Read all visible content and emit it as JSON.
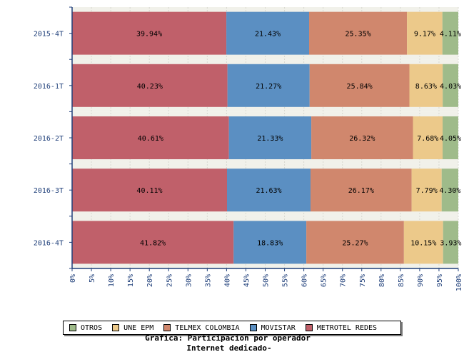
{
  "chart_data": {
    "type": "bar",
    "orientation": "horizontal",
    "stacked": true,
    "categories": [
      "2015-4T",
      "2016-1T",
      "2016-2T",
      "2016-3T",
      "2016-4T"
    ],
    "series": [
      {
        "name": "METROTEL REDES",
        "color": "#c0606a",
        "values": [
          39.94,
          40.23,
          40.61,
          40.11,
          41.82
        ]
      },
      {
        "name": "MOVISTAR",
        "color": "#5b8fc2",
        "values": [
          21.43,
          21.27,
          21.33,
          21.63,
          18.83
        ]
      },
      {
        "name": "TELMEX COLOMBIA",
        "color": "#d0876d",
        "values": [
          25.35,
          25.84,
          26.32,
          26.17,
          25.27
        ]
      },
      {
        "name": "UNE EPM",
        "color": "#ecc98a",
        "values": [
          9.17,
          8.63,
          7.68,
          7.79,
          10.15
        ]
      },
      {
        "name": "OTROS",
        "color": "#9fbb8a",
        "values": [
          4.11,
          4.03,
          4.05,
          4.3,
          3.93
        ]
      }
    ],
    "data_labels": [
      [
        "39.94%",
        "21.43%",
        "25.35%",
        "9.17%",
        "4.11%"
      ],
      [
        "40.23%",
        "21.27%",
        "25.84%",
        "8.63%",
        "4.03%"
      ],
      [
        "40.61%",
        "21.33%",
        "26.32%",
        "7.68%",
        "4.05%"
      ],
      [
        "40.11%",
        "21.63%",
        "26.17%",
        "7.79%",
        "4.30%"
      ],
      [
        "41.82%",
        "18.83%",
        "25.27%",
        "10.15%",
        "3.93%"
      ]
    ],
    "xlim": [
      0,
      100
    ],
    "x_ticks": [
      "0%",
      "5%",
      "10%",
      "15%",
      "20%",
      "25%",
      "30%",
      "35%",
      "40%",
      "45%",
      "50%",
      "55%",
      "60%",
      "65%",
      "70%",
      "75%",
      "80%",
      "85%",
      "90%",
      "95%",
      "100%"
    ],
    "grid": true,
    "legend_placement": "bottom",
    "legend_order": [
      "OTROS",
      "UNE EPM",
      "TELMEX COLOMBIA",
      "MOVISTAR",
      "METROTEL REDES"
    ],
    "caption": [
      "Grafica: Participacion por operador",
      "Internet dedicado-"
    ]
  },
  "colors": {
    "axis": "#1f3f7a",
    "tick_label": "#1f3f7a",
    "band": "#f1f1ea"
  }
}
